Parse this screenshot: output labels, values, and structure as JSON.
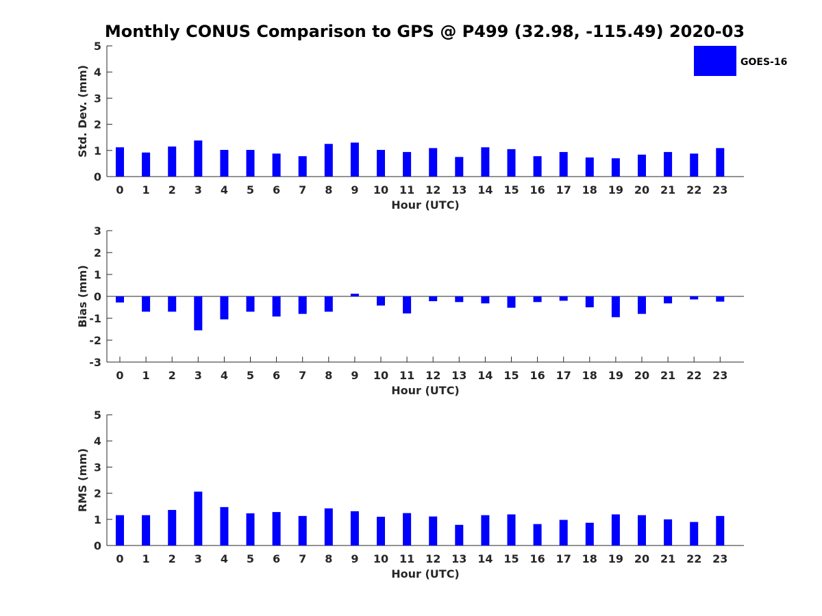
{
  "chart_data": {
    "type": "bar",
    "title": "Monthly CONUS Comparison to GPS @ P499 (32.98, -115.49) 2020-03",
    "legend": {
      "label": "GOES-16",
      "color": "#0000ff",
      "placement": "top-right"
    },
    "categories": [
      "0",
      "1",
      "2",
      "3",
      "4",
      "5",
      "6",
      "7",
      "8",
      "9",
      "10",
      "11",
      "12",
      "13",
      "14",
      "15",
      "16",
      "17",
      "18",
      "19",
      "20",
      "21",
      "22",
      "23"
    ],
    "panels": [
      {
        "id": "std",
        "xlabel": "Hour (UTC)",
        "ylabel": "Std. Dev. (mm)",
        "ylim": [
          0,
          5
        ],
        "yticks": [
          0,
          1,
          2,
          3,
          4,
          5
        ],
        "series": [
          {
            "name": "GOES-16",
            "values": [
              1.12,
              0.92,
              1.15,
              1.38,
              1.02,
              1.02,
              0.88,
              0.78,
              1.25,
              1.3,
              1.02,
              0.94,
              1.09,
              0.75,
              1.12,
              1.05,
              0.78,
              0.94,
              0.73,
              0.7,
              0.84,
              0.94,
              0.88,
              1.09
            ]
          }
        ]
      },
      {
        "id": "bias",
        "xlabel": "Hour (UTC)",
        "ylabel": "Bias (mm)",
        "ylim": [
          -3,
          3
        ],
        "yticks": [
          -3,
          -2,
          -1,
          0,
          1,
          2,
          3
        ],
        "series": [
          {
            "name": "GOES-16",
            "values": [
              -0.28,
              -0.7,
              -0.7,
              -1.55,
              -1.05,
              -0.7,
              -0.92,
              -0.8,
              -0.7,
              0.12,
              -0.42,
              -0.78,
              -0.22,
              -0.26,
              -0.32,
              -0.52,
              -0.26,
              -0.2,
              -0.5,
              -0.95,
              -0.8,
              -0.32,
              -0.14,
              -0.24
            ]
          }
        ]
      },
      {
        "id": "rms",
        "xlabel": "Hour (UTC)",
        "ylabel": "RMS (mm)",
        "ylim": [
          0,
          5
        ],
        "yticks": [
          0,
          1,
          2,
          3,
          4,
          5
        ],
        "series": [
          {
            "name": "GOES-16",
            "values": [
              1.16,
              1.16,
              1.36,
              2.06,
              1.47,
              1.23,
              1.28,
              1.13,
              1.42,
              1.31,
              1.1,
              1.24,
              1.11,
              0.79,
              1.16,
              1.19,
              0.82,
              0.98,
              0.87,
              1.19,
              1.16,
              1.0,
              0.9,
              1.13
            ]
          }
        ]
      }
    ]
  }
}
